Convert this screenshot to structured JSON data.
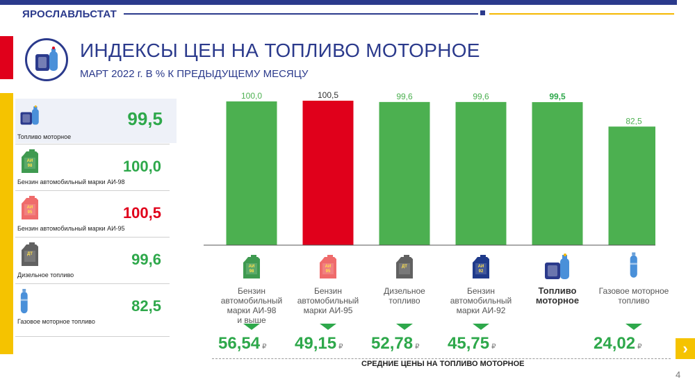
{
  "header": {
    "brand": "ЯРОСЛАВЛЬСТАТ",
    "title": "ИНДЕКСЫ ЦЕН НА ТОПЛИВО МОТОРНОЕ",
    "subtitle": "МАРТ  2022 г. В % К ПРЕДЫДУЩЕМУ  МЕСЯЦУ"
  },
  "side_panel": [
    {
      "label": "Топливо  моторное",
      "value": "99,5",
      "color": "#2ea84b",
      "icon": "fuel-canister-icon"
    },
    {
      "label": "Бензин  автомобильный  марки АИ-98",
      "value": "100,0",
      "color": "#2ea84b",
      "icon": "gasoline-ai98-canister-icon",
      "icon_text": "АИ 98"
    },
    {
      "label": "Бензин  автомобильный  марки АИ-95",
      "value": "100,5",
      "color": "#e0001b",
      "icon": "gasoline-ai95-canister-icon",
      "icon_text": "АИ 95"
    },
    {
      "label": "Дизельное  топливо",
      "value": "99,6",
      "color": "#2ea84b",
      "icon": "diesel-canister-icon",
      "icon_text": "ДТ"
    },
    {
      "label": "Газовое  моторное  топливо",
      "value": "82,5",
      "color": "#2ea84b",
      "icon": "gas-cylinder-icon"
    }
  ],
  "chart_data": {
    "type": "bar",
    "title": "ИНДЕКСЫ ЦЕН НА ТОПЛИВО МОТОРНОЕ",
    "categories": [
      "Бензин автомобильный марки АИ-98 и выше",
      "Бензин автомобильный марки АИ-95",
      "Дизельное топливо",
      "Бензин автомобильный марки АИ-92",
      "Топливо моторное",
      "Газовое моторное топливо"
    ],
    "values": [
      100.0,
      100.5,
      99.6,
      99.6,
      99.5,
      82.5
    ],
    "value_labels": [
      "100,0",
      "100,5",
      "99,6",
      "99,6",
      "99,5",
      "82,5"
    ],
    "bar_colors": [
      "#4cb050",
      "#e0001b",
      "#4cb050",
      "#4cb050",
      "#4cb050",
      "#4cb050"
    ],
    "ylim": [
      0,
      100.5
    ],
    "grid": false,
    "legend": "none"
  },
  "categories_display": [
    {
      "lines": [
        "Бензин",
        "автомобильный",
        "марки АИ-98",
        "и выше"
      ],
      "bold": false,
      "icon": "gasoline-ai98-canister-icon",
      "icon_text": "АИ 98",
      "icon_color": "#3f9a50"
    },
    {
      "lines": [
        "Бензин",
        "автомобильный",
        "марки АИ-95"
      ],
      "bold": false,
      "icon": "gasoline-ai95-canister-icon",
      "icon_text": "АИ 95",
      "icon_color": "#ef6b6b"
    },
    {
      "lines": [
        "Дизельное",
        "топливо"
      ],
      "bold": false,
      "icon": "diesel-canister-icon",
      "icon_text": "ДТ",
      "icon_color": "#616161"
    },
    {
      "lines": [
        "Бензин",
        "автомобильный",
        "марки АИ-92"
      ],
      "bold": false,
      "icon": "gasoline-ai92-canister-icon",
      "icon_text": "АИ 92",
      "icon_color": "#1f3a8a"
    },
    {
      "lines": [
        "Топливо",
        "моторное"
      ],
      "bold": true,
      "icon": "fuel-canister-icon"
    },
    {
      "lines": [
        "Газовое моторное",
        "топливо"
      ],
      "bold": false,
      "icon": "gas-cylinder-icon"
    }
  ],
  "prices": {
    "label": "СРЕДНИЕ ЦЕНЫ НА ТОПЛИВО МОТОРНОЕ",
    "currency": "₽",
    "items": [
      "56,54",
      "49,15",
      "52,78",
      "45,75",
      "",
      "24,02"
    ]
  },
  "page_number": "4",
  "colors": {
    "brand": "#2b3a8c",
    "green": "#2ea84b",
    "red": "#e0001b",
    "yellow": "#f5c300"
  }
}
